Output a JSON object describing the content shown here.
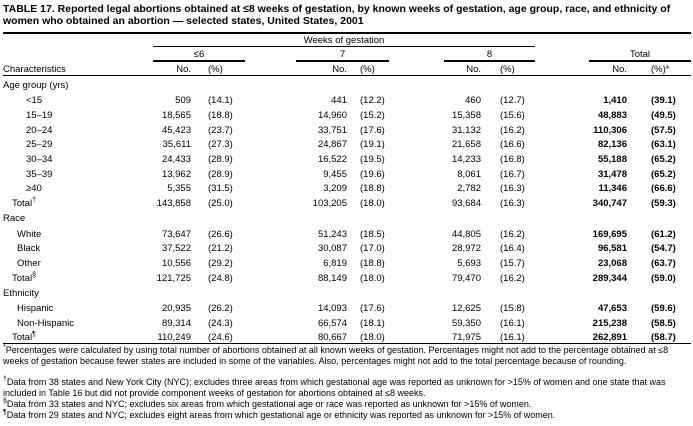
{
  "title": "TABLE 17. Reported legal abortions obtained at ≤8 weeks of gestation, by known weeks of gestation, age group, race, and ethnicity of women who obtained an abortion — selected states, United States, 2001",
  "header": {
    "spanner": "Weeks of gestation",
    "groups": [
      "≤6",
      "7",
      "8",
      "Total"
    ],
    "stub": "Characteristics",
    "no": "No.",
    "pct": "(%)",
    "pct_total": "(%)*"
  },
  "sections": [
    {
      "label": "Age group (yrs)",
      "rows": [
        {
          "label": "<15",
          "v": [
            "509",
            "(14.1)",
            "441",
            "(12.2)",
            "460",
            "(12.7)",
            "1,410",
            "(39.1)"
          ]
        },
        {
          "label": "15–19",
          "v": [
            "18,565",
            "(18.8)",
            "14,960",
            "(15.2)",
            "15,358",
            "(15.6)",
            "48,883",
            "(49.5)"
          ]
        },
        {
          "label": "20–24",
          "v": [
            "45,423",
            "(23.7)",
            "33,751",
            "(17.6)",
            "31,132",
            "(16.2)",
            "110,306",
            "(57.5)"
          ]
        },
        {
          "label": "25–29",
          "v": [
            "35,611",
            "(27.3)",
            "24,867",
            "(19.1)",
            "21,658",
            "(16.6)",
            "82,136",
            "(63.1)"
          ]
        },
        {
          "label": "30–34",
          "v": [
            "24,433",
            "(28.9)",
            "16,522",
            "(19.5)",
            "14,233",
            "(16.8)",
            "55,188",
            "(65.2)"
          ]
        },
        {
          "label": "35–39",
          "v": [
            "13,962",
            "(28.9)",
            "9,455",
            "(19.6)",
            "8,061",
            "(16.7)",
            "31,478",
            "(65.2)"
          ]
        },
        {
          "label": "≥40",
          "v": [
            "5,355",
            "(31.5)",
            "3,209",
            "(18.8)",
            "2,782",
            "(16.3)",
            "11,346",
            "(66.6)"
          ]
        },
        {
          "label": "Total",
          "mark": "†",
          "total": true,
          "v": [
            "143,858",
            "(25.0)",
            "103,205",
            "(18.0)",
            "93,684",
            "(16.3)",
            "340,747",
            "(59.3)"
          ]
        }
      ]
    },
    {
      "label": "Race",
      "rows": [
        {
          "label": "White",
          "v": [
            "73,647",
            "(26.6)",
            "51,243",
            "(18.5)",
            "44,805",
            "(16.2)",
            "169,695",
            "(61.2)"
          ]
        },
        {
          "label": "Black",
          "v": [
            "37,522",
            "(21.2)",
            "30,087",
            "(17.0)",
            "28,972",
            "(16.4)",
            "96,581",
            "(54.7)"
          ]
        },
        {
          "label": "Other",
          "v": [
            "10,556",
            "(29.2)",
            "6,819",
            "(18.8)",
            "5,693",
            "(15.7)",
            "23,068",
            "(63.7)"
          ]
        },
        {
          "label": "Total",
          "mark": "§",
          "total": true,
          "v": [
            "121,725",
            "(24.8)",
            "88,149",
            "(18.0)",
            "79,470",
            "(16.2)",
            "289,344",
            "(59.0)"
          ]
        }
      ]
    },
    {
      "label": "Ethnicity",
      "rows": [
        {
          "label": "Hispanic",
          "v": [
            "20,935",
            "(26.2)",
            "14,093",
            "(17.6)",
            "12,625",
            "(15.8)",
            "47,653",
            "(59.6)"
          ]
        },
        {
          "label": "Non-Hispanic",
          "v": [
            "89,314",
            "(24.3)",
            "66,574",
            "(18.1)",
            "59,350",
            "(16.1)",
            "215,238",
            "(58.5)"
          ]
        },
        {
          "label": "Total",
          "mark": "¶",
          "total": true,
          "v": [
            "110,249",
            "(24.6)",
            "80,667",
            "(18.0)",
            "71,975",
            "(16.1)",
            "262,891",
            "(58.7)"
          ]
        }
      ]
    }
  ],
  "footnotes": [
    {
      "mark": "*",
      "text": "Percentages were calculated by using total number of abortions obtained at all known weeks of gestation. Percentages might not add to the percentage obtained at ≤8 weeks of gestation because fewer states are included in some of the variables. Also, percentages might not add to the total percentage because of rounding."
    },
    {
      "mark": "†",
      "text": "Data from 38 states and New York City (NYC); excludes three areas from which gestational age was reported as unknown for >15% of women and one state that was included in Table 16 but did not provide component weeks of gestation for abortions obtained at ≤8 weeks."
    },
    {
      "mark": "§",
      "text": "Data from 33 states and NYC; excludes six areas from which gestational age or race was reported as unknown for >15% of women."
    },
    {
      "mark": "¶",
      "text": "Data from 29 states and NYC; excludes eight areas from which gestational age or ethnicity was reported as unknown for >15% of women."
    }
  ]
}
